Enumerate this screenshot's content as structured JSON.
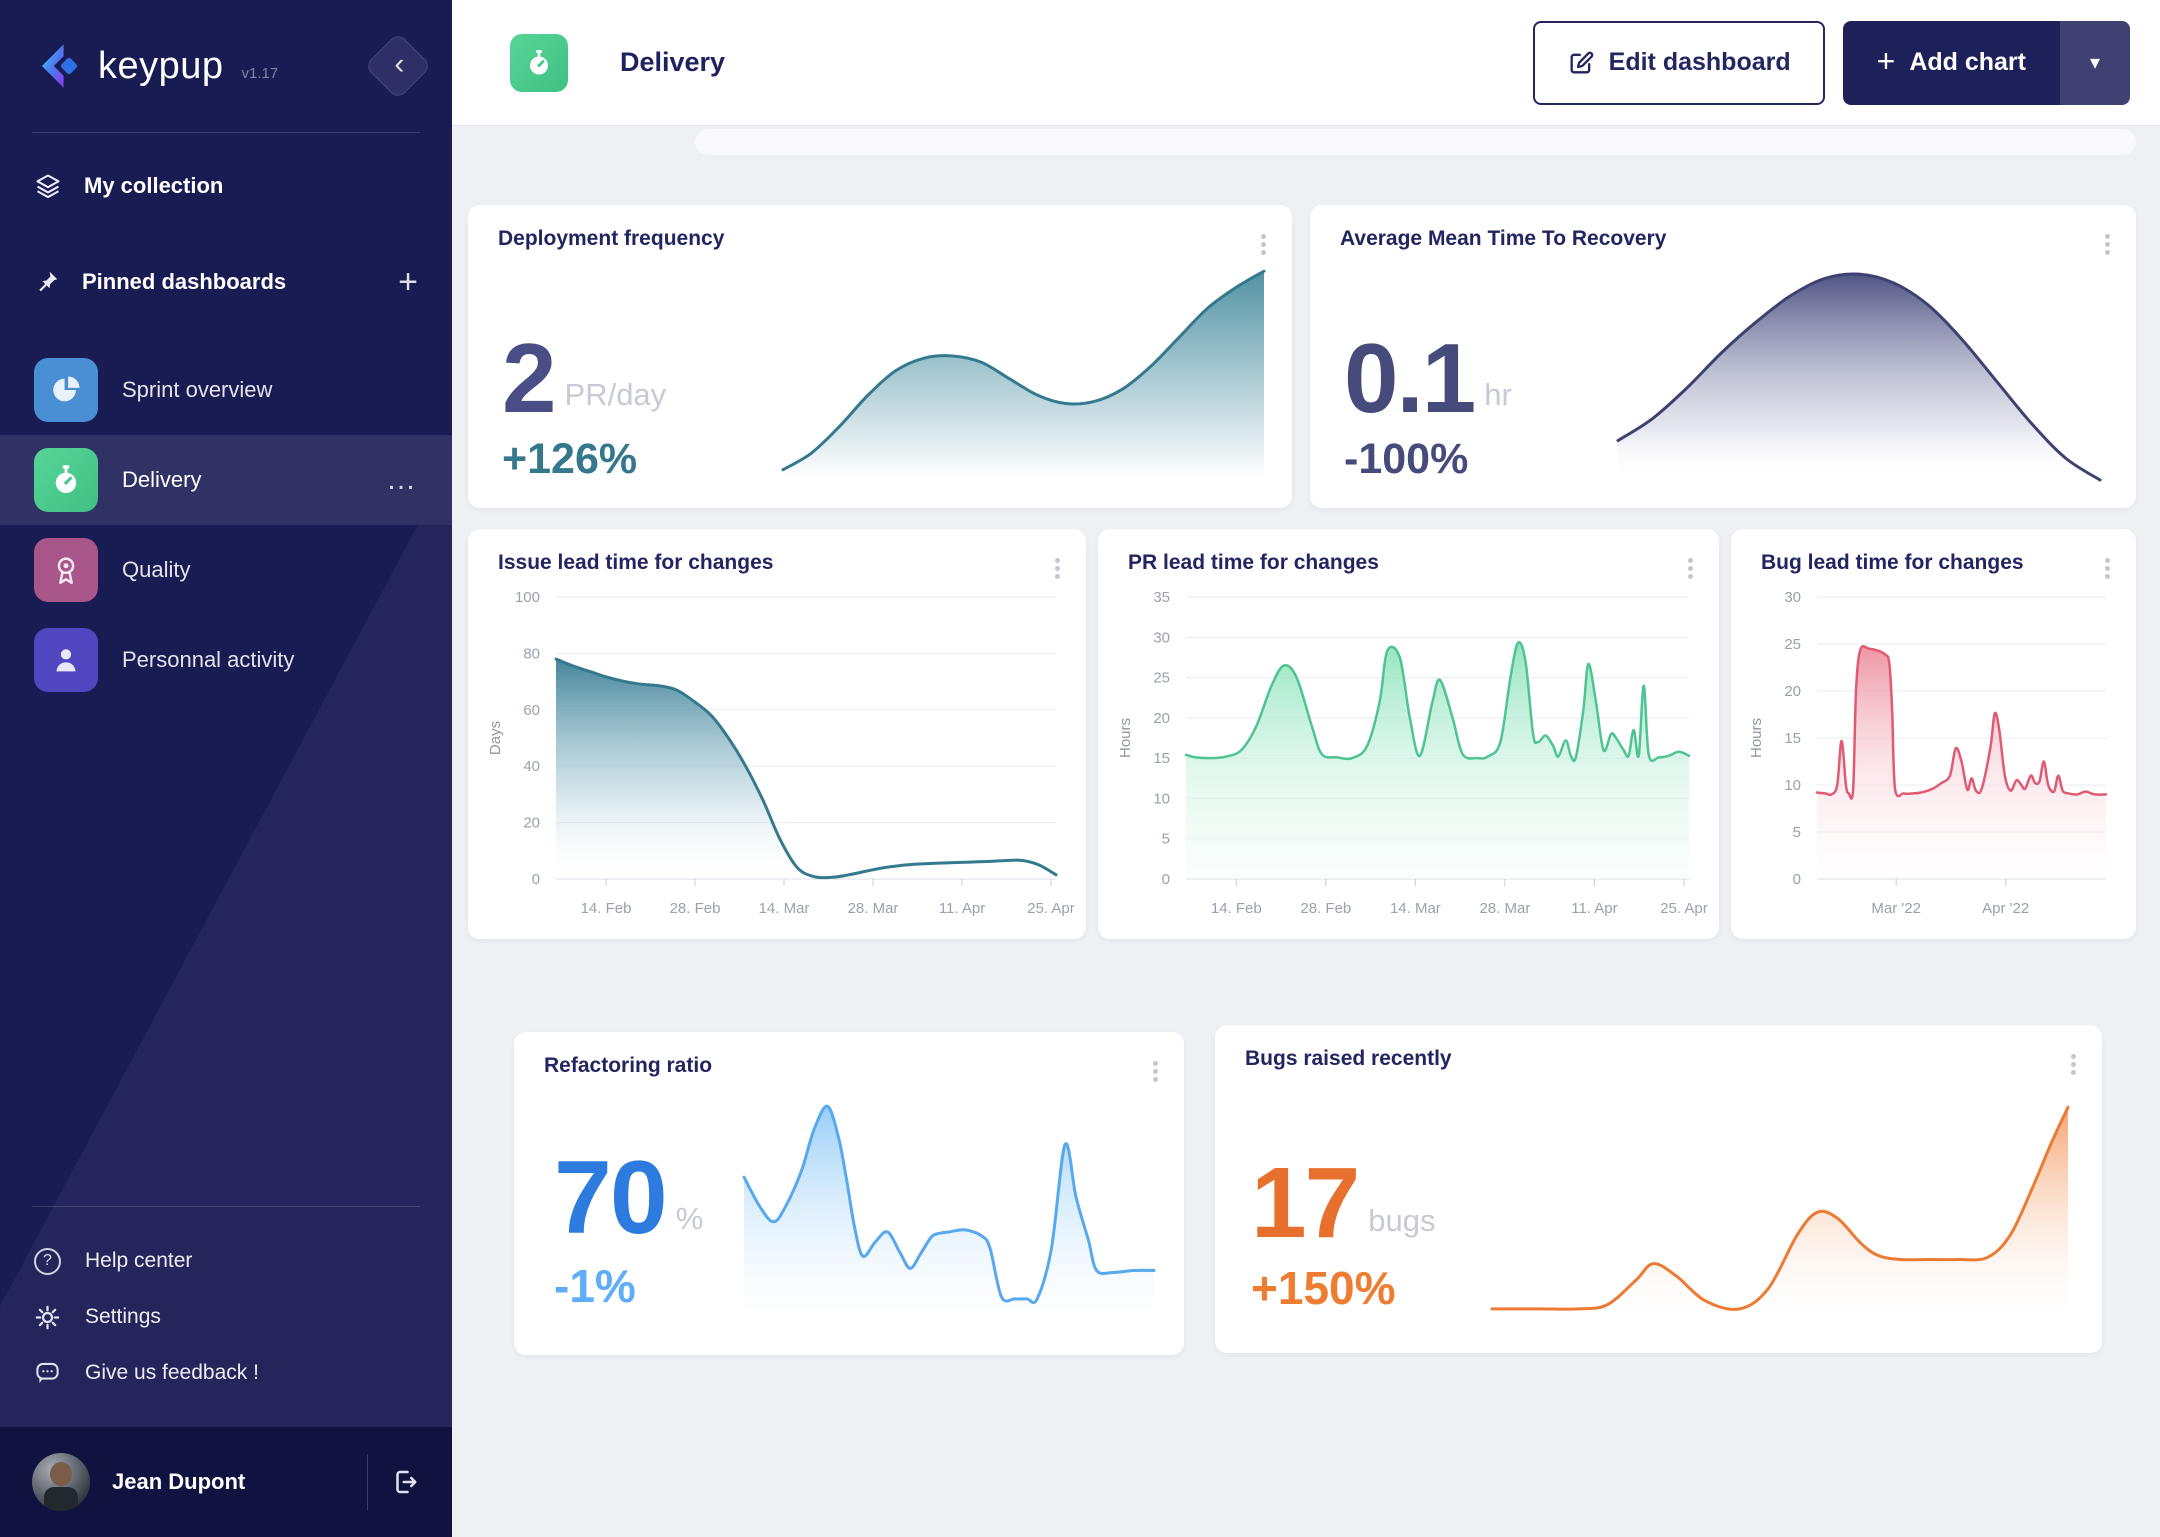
{
  "app": {
    "name": "keypup",
    "version": "v1.17"
  },
  "icons": {
    "plus": "+",
    "caret_down": "▾",
    "chevron_left": "‹",
    "ellipsis": "…",
    "help_glyph": "?"
  },
  "colors": {
    "sidebar_bg": "#191b53",
    "brand_navy": "#1e2059",
    "teal": "#35798e",
    "navy_chart": "#3e4271",
    "mint": "#4fc492",
    "pink": "#e05a72",
    "blue": "#58a8ee",
    "orange": "#ec7a33",
    "green_tile": "#4ccb8c",
    "content_bg": "#eef0f4"
  },
  "sidebar": {
    "collection_label": "My collection",
    "pinned_label": "Pinned dashboards",
    "items": [
      {
        "label": "Sprint overview"
      },
      {
        "label": "Delivery",
        "active": true
      },
      {
        "label": "Quality"
      },
      {
        "label": "Personnal activity"
      }
    ],
    "footer_links": [
      {
        "label": "Help center"
      },
      {
        "label": "Settings"
      },
      {
        "label": "Give us feedback !"
      }
    ],
    "user": {
      "name": "Jean Dupont"
    }
  },
  "header": {
    "title": "Delivery",
    "edit_label": "Edit dashboard",
    "add_label": "Add chart"
  },
  "cards": {
    "deployment": {
      "title": "Deployment frequency",
      "kpi_value": "2",
      "kpi_unit": "PR/day",
      "kpi_delta": "+126%"
    },
    "amttr": {
      "title": "Average Mean Time To Recovery",
      "kpi_value": "0.1",
      "kpi_unit": "hr",
      "kpi_delta": "-100%"
    },
    "issue_lead": {
      "title": "Issue lead time for changes"
    },
    "pr_lead": {
      "title": "PR lead time for changes"
    },
    "bug_lead": {
      "title": "Bug lead time for changes"
    },
    "refactoring": {
      "title": "Refactoring ratio",
      "kpi_value": "70",
      "kpi_unit": "%",
      "kpi_delta": "-1%"
    },
    "bugs_raised": {
      "title": "Bugs raised recently",
      "kpi_value": "17",
      "kpi_unit": "bugs",
      "kpi_delta": "+150%"
    }
  },
  "charts": {
    "deployment": {
      "type": "area",
      "axis": false,
      "unit": "relative",
      "stroke": "#35798e",
      "sw": 3,
      "grad": [
        [
          "0",
          "#3f879b",
          0.9
        ],
        [
          "1",
          "#3f879b",
          0
        ]
      ],
      "ymin": 0,
      "ymax": 102,
      "y": [
        4,
        12,
        25,
        40,
        52,
        58,
        59,
        56,
        48,
        40,
        36,
        37,
        43,
        54,
        68,
        82,
        92,
        100
      ]
    },
    "amttr": {
      "type": "area",
      "axis": false,
      "unit": "relative",
      "stroke": "#3e4271",
      "sw": 3,
      "grad": [
        [
          "0",
          "#474b7c",
          0.95
        ],
        [
          "0.75",
          "#9ca0c0",
          0.25
        ],
        [
          "1",
          "#ffffff",
          0
        ]
      ],
      "ymin": 0,
      "ymax": 100,
      "y": [
        18,
        28,
        42,
        58,
        72,
        84,
        92,
        94,
        90,
        80,
        64,
        45,
        26,
        10,
        0
      ]
    },
    "issue_lead": {
      "type": "area",
      "axis": true,
      "ylabel": "Days",
      "stroke": "#35798e",
      "sw": 3,
      "grad": [
        [
          "0",
          "#3a7e95",
          0.95
        ],
        [
          "0.6",
          "#7fb0c0",
          0.35
        ],
        [
          "1",
          "#ffffff",
          0.02
        ]
      ],
      "ymin": 0,
      "ymax": 100,
      "yticks": [
        0,
        20,
        40,
        60,
        80,
        100
      ],
      "xticks": [
        {
          "f": 0.1,
          "label": "14. Feb"
        },
        {
          "f": 0.278,
          "label": "28. Feb"
        },
        {
          "f": 0.456,
          "label": "14. Mar"
        },
        {
          "f": 0.634,
          "label": "28. Mar"
        },
        {
          "f": 0.812,
          "label": "11. Apr"
        },
        {
          "f": 0.99,
          "label": "25. Apr"
        }
      ],
      "y": [
        78,
        75.5,
        73.5,
        71.5,
        70,
        69,
        68.5,
        67,
        63,
        58,
        50,
        40,
        28,
        14,
        4,
        0.8,
        0.6,
        1.5,
        2.8,
        4,
        4.8,
        5.3,
        5.6,
        5.8,
        6,
        6.2,
        6.5,
        6.6,
        5,
        1.5
      ]
    },
    "pr_lead": {
      "type": "area",
      "axis": true,
      "ylabel": "Hours",
      "stroke": "#4fc492",
      "sw": 2.5,
      "grad": [
        [
          "0",
          "#8fe3bd",
          0.95
        ],
        [
          "0.55",
          "#c5f1de",
          0.5
        ],
        [
          "1",
          "#eefaf4",
          0.25
        ]
      ],
      "ymin": 0,
      "ymax": 35,
      "yticks": [
        0,
        5,
        10,
        15,
        20,
        25,
        30,
        35
      ],
      "xticks": [
        {
          "f": 0.1,
          "label": "14. Feb"
        },
        {
          "f": 0.278,
          "label": "28. Feb"
        },
        {
          "f": 0.456,
          "label": "14. Mar"
        },
        {
          "f": 0.634,
          "label": "28. Mar"
        },
        {
          "f": 0.812,
          "label": "11. Apr"
        },
        {
          "f": 0.99,
          "label": "25. Apr"
        }
      ],
      "x": [
        0,
        0.02,
        0.05,
        0.08,
        0.11,
        0.14,
        0.17,
        0.195,
        0.22,
        0.25,
        0.27,
        0.3,
        0.33,
        0.36,
        0.385,
        0.4,
        0.425,
        0.445,
        0.465,
        0.49,
        0.505,
        0.53,
        0.55,
        0.58,
        0.6,
        0.625,
        0.645,
        0.66,
        0.675,
        0.69,
        0.7,
        0.715,
        0.73,
        0.74,
        0.755,
        0.765,
        0.775,
        0.79,
        0.8,
        0.815,
        0.83,
        0.845,
        0.855,
        0.87,
        0.88,
        0.89,
        0.9,
        0.91,
        0.92,
        0.94,
        0.96,
        0.98,
        1
      ],
      "y": [
        15.4,
        15.1,
        15,
        15.2,
        16,
        19,
        24,
        26.5,
        25,
        19,
        15.5,
        15.1,
        15,
        16.5,
        22,
        28.3,
        27.5,
        20,
        15.3,
        22,
        24.7,
        20,
        15.5,
        15,
        15.2,
        17,
        25,
        29.3,
        27,
        18,
        17,
        17.8,
        16.5,
        15.2,
        17.2,
        15.3,
        15.1,
        21,
        26.7,
        22,
        16,
        18,
        17.5,
        16,
        15.3,
        18.5,
        15.3,
        24,
        15.4,
        15.1,
        15.3,
        15.8,
        15.3
      ]
    },
    "bug_lead": {
      "type": "area",
      "axis": true,
      "ylabel": "Hours",
      "stroke": "#e05a72",
      "sw": 2.5,
      "grad": [
        [
          "0",
          "#ec8a9b",
          0.9
        ],
        [
          "0.5",
          "#f6c3cc",
          0.45
        ],
        [
          "1",
          "#fdf1f3",
          0.1
        ]
      ],
      "ymin": 0,
      "ymax": 30,
      "yticks": [
        0,
        5,
        10,
        15,
        20,
        25,
        30
      ],
      "xticks": [
        {
          "f": 0.274,
          "label": "Mar '22"
        },
        {
          "f": 0.653,
          "label": "Apr '22"
        }
      ],
      "x": [
        0,
        0.03,
        0.05,
        0.07,
        0.085,
        0.1,
        0.11,
        0.125,
        0.135,
        0.15,
        0.18,
        0.21,
        0.235,
        0.25,
        0.26,
        0.27,
        0.3,
        0.33,
        0.36,
        0.4,
        0.43,
        0.46,
        0.48,
        0.5,
        0.52,
        0.535,
        0.55,
        0.57,
        0.6,
        0.615,
        0.63,
        0.65,
        0.67,
        0.69,
        0.705,
        0.72,
        0.74,
        0.755,
        0.77,
        0.785,
        0.8,
        0.82,
        0.835,
        0.85,
        0.87,
        0.9,
        0.93,
        0.96,
        1
      ],
      "y": [
        9.2,
        9.1,
        9,
        10,
        14.7,
        10,
        9.1,
        9.5,
        20,
        24.4,
        24.5,
        24.3,
        23.9,
        23,
        18,
        9.6,
        9.1,
        9.1,
        9.2,
        9.6,
        10.2,
        11,
        13.9,
        12.5,
        9.5,
        10.7,
        9.4,
        9.6,
        14,
        17.6,
        16,
        11,
        9.4,
        10.5,
        10.1,
        9.6,
        11,
        10.2,
        10.4,
        12.5,
        10,
        9.3,
        11,
        9.4,
        9.1,
        9,
        9.3,
        9,
        9
      ]
    },
    "refactoring": {
      "type": "area",
      "axis": false,
      "unit": "relative",
      "stroke": "#58a8ee",
      "sw": 3,
      "grad": [
        [
          "0",
          "#93cbf7",
          0.95
        ],
        [
          "1",
          "#e9f4fd",
          0.1
        ]
      ],
      "ymin": 0,
      "ymax": 105,
      "x": [
        0,
        0.04,
        0.072,
        0.1,
        0.14,
        0.17,
        0.203,
        0.23,
        0.25,
        0.27,
        0.29,
        0.32,
        0.35,
        0.38,
        0.405,
        0.43,
        0.455,
        0.47,
        0.5,
        0.54,
        0.58,
        0.6,
        0.628,
        0.66,
        0.69,
        0.715,
        0.75,
        0.783,
        0.81,
        0.84,
        0.86,
        0.9,
        0.95,
        1
      ],
      "y": [
        65,
        50,
        43,
        50,
        68,
        88,
        100,
        85,
        64,
        40,
        26,
        33,
        38,
        28,
        20,
        27,
        35,
        37,
        38,
        39,
        36,
        30,
        6,
        5,
        5,
        5,
        30,
        81,
        55,
        34,
        19,
        18,
        19,
        19
      ]
    },
    "bugs_raised": {
      "type": "area",
      "axis": false,
      "unit": "relative",
      "stroke": "#ec7a33",
      "sw": 3,
      "grad": [
        [
          "0",
          "#f49a62",
          0.9
        ],
        [
          "1",
          "#fdf3ec",
          0.05
        ]
      ],
      "ymin": 0,
      "ymax": 105,
      "x": [
        0,
        0.08,
        0.15,
        0.2,
        0.25,
        0.28,
        0.32,
        0.37,
        0.43,
        0.48,
        0.53,
        0.565,
        0.6,
        0.64,
        0.67,
        0.71,
        0.76,
        0.81,
        0.86,
        0.9,
        0.94,
        0.97,
        1
      ],
      "y": [
        2,
        2,
        2,
        4,
        16,
        24,
        18,
        6,
        2,
        12,
        38,
        49,
        46,
        34,
        28,
        26,
        26,
        26,
        27,
        38,
        62,
        82,
        100
      ]
    }
  }
}
